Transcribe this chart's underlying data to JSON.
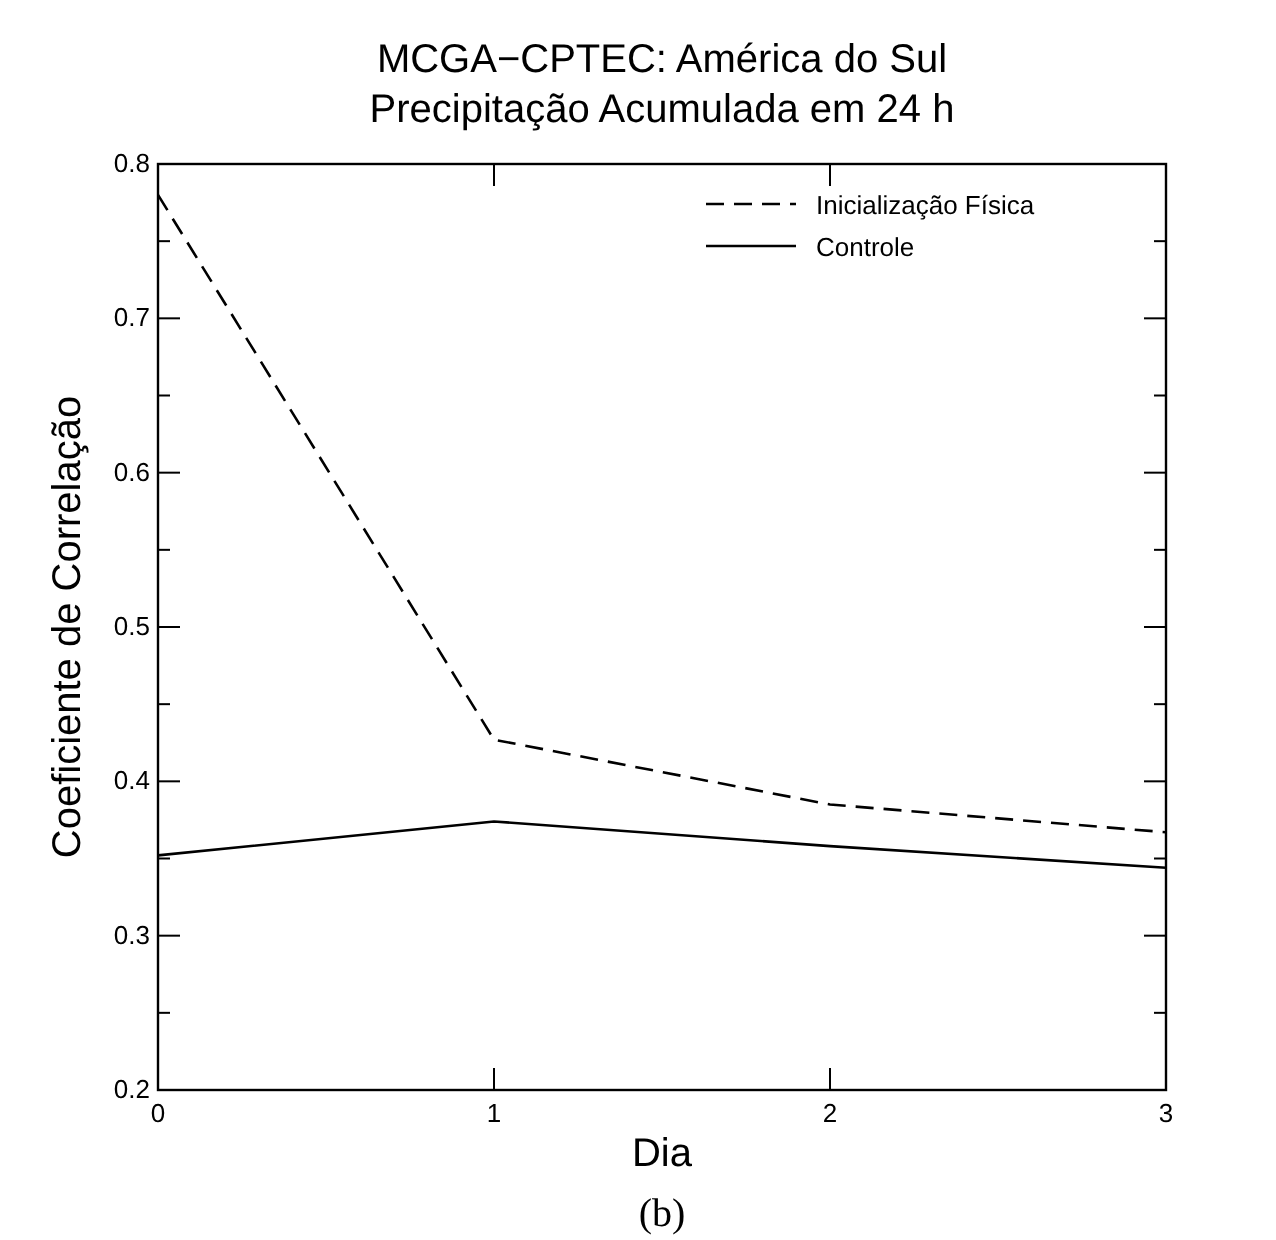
{
  "chart_data": {
    "type": "line",
    "title": "MCGA−CPTEC:  América do Sul\nPrecipitação Acumulada em 24 h",
    "xlabel": "Dia",
    "ylabel": "Coeficiente de Correlação",
    "x": [
      0,
      1,
      2,
      3
    ],
    "series": [
      {
        "name": "Inicialização Física",
        "color": "#000000",
        "line_style": "dashed",
        "values": [
          0.78,
          0.427,
          0.385,
          0.367
        ]
      },
      {
        "name": "Controle",
        "color": "#000000",
        "line_style": "solid",
        "values": [
          0.352,
          0.374,
          0.358,
          0.344
        ]
      }
    ],
    "xlim": [
      0,
      3
    ],
    "xticks": [
      0,
      1,
      2,
      3
    ],
    "ylim": [
      0.2,
      0.8
    ],
    "yticks": [
      0.2,
      {
        "value": 0.25,
        "label": null
      },
      0.3,
      {
        "value": 0.35,
        "label": null
      },
      0.4,
      {
        "value": 0.45,
        "label": null
      },
      0.5,
      {
        "value": 0.55,
        "label": null
      },
      0.6,
      {
        "value": 0.65,
        "label": null
      },
      0.7,
      {
        "value": 0.75,
        "label": null
      },
      0.8
    ],
    "grid": false,
    "legend": "top right",
    "annotations": [
      "(b)"
    ]
  }
}
